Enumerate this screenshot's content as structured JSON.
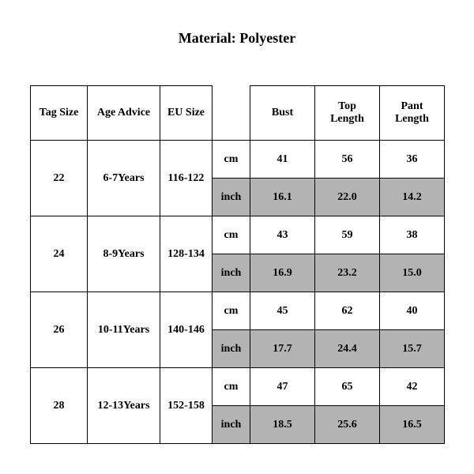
{
  "title": "Material: Polyester",
  "columns": [
    "Tag Size",
    "Age Advice",
    "EU Size",
    "",
    "Bust",
    "Top Length",
    "Pant Length"
  ],
  "unit_labels": {
    "cm": "cm",
    "inch": "inch"
  },
  "highlight_color": "#b3b3b3",
  "rows": [
    {
      "tag": "22",
      "age": "6-7Years",
      "eu": "116-122",
      "cm": {
        "bust": "41",
        "top": "56",
        "pant": "36"
      },
      "inch": {
        "bust": "16.1",
        "top": "22.0",
        "pant": "14.2"
      }
    },
    {
      "tag": "24",
      "age": "8-9Years",
      "eu": "128-134",
      "cm": {
        "bust": "43",
        "top": "59",
        "pant": "38"
      },
      "inch": {
        "bust": "16.9",
        "top": "23.2",
        "pant": "15.0"
      }
    },
    {
      "tag": "26",
      "age": "10-11Years",
      "eu": "140-146",
      "cm": {
        "bust": "45",
        "top": "62",
        "pant": "40"
      },
      "inch": {
        "bust": "17.7",
        "top": "24.4",
        "pant": "15.7"
      }
    },
    {
      "tag": "28",
      "age": "12-13Years",
      "eu": "152-158",
      "cm": {
        "bust": "47",
        "top": "65",
        "pant": "42"
      },
      "inch": {
        "bust": "18.5",
        "top": "25.6",
        "pant": "16.5"
      }
    }
  ],
  "style": {
    "font_family": "Times New Roman",
    "header_fontsize": 14,
    "title_fontsize": 18,
    "cell_fontsize": 14,
    "border_color": "#000000",
    "background_color": "#ffffff"
  }
}
